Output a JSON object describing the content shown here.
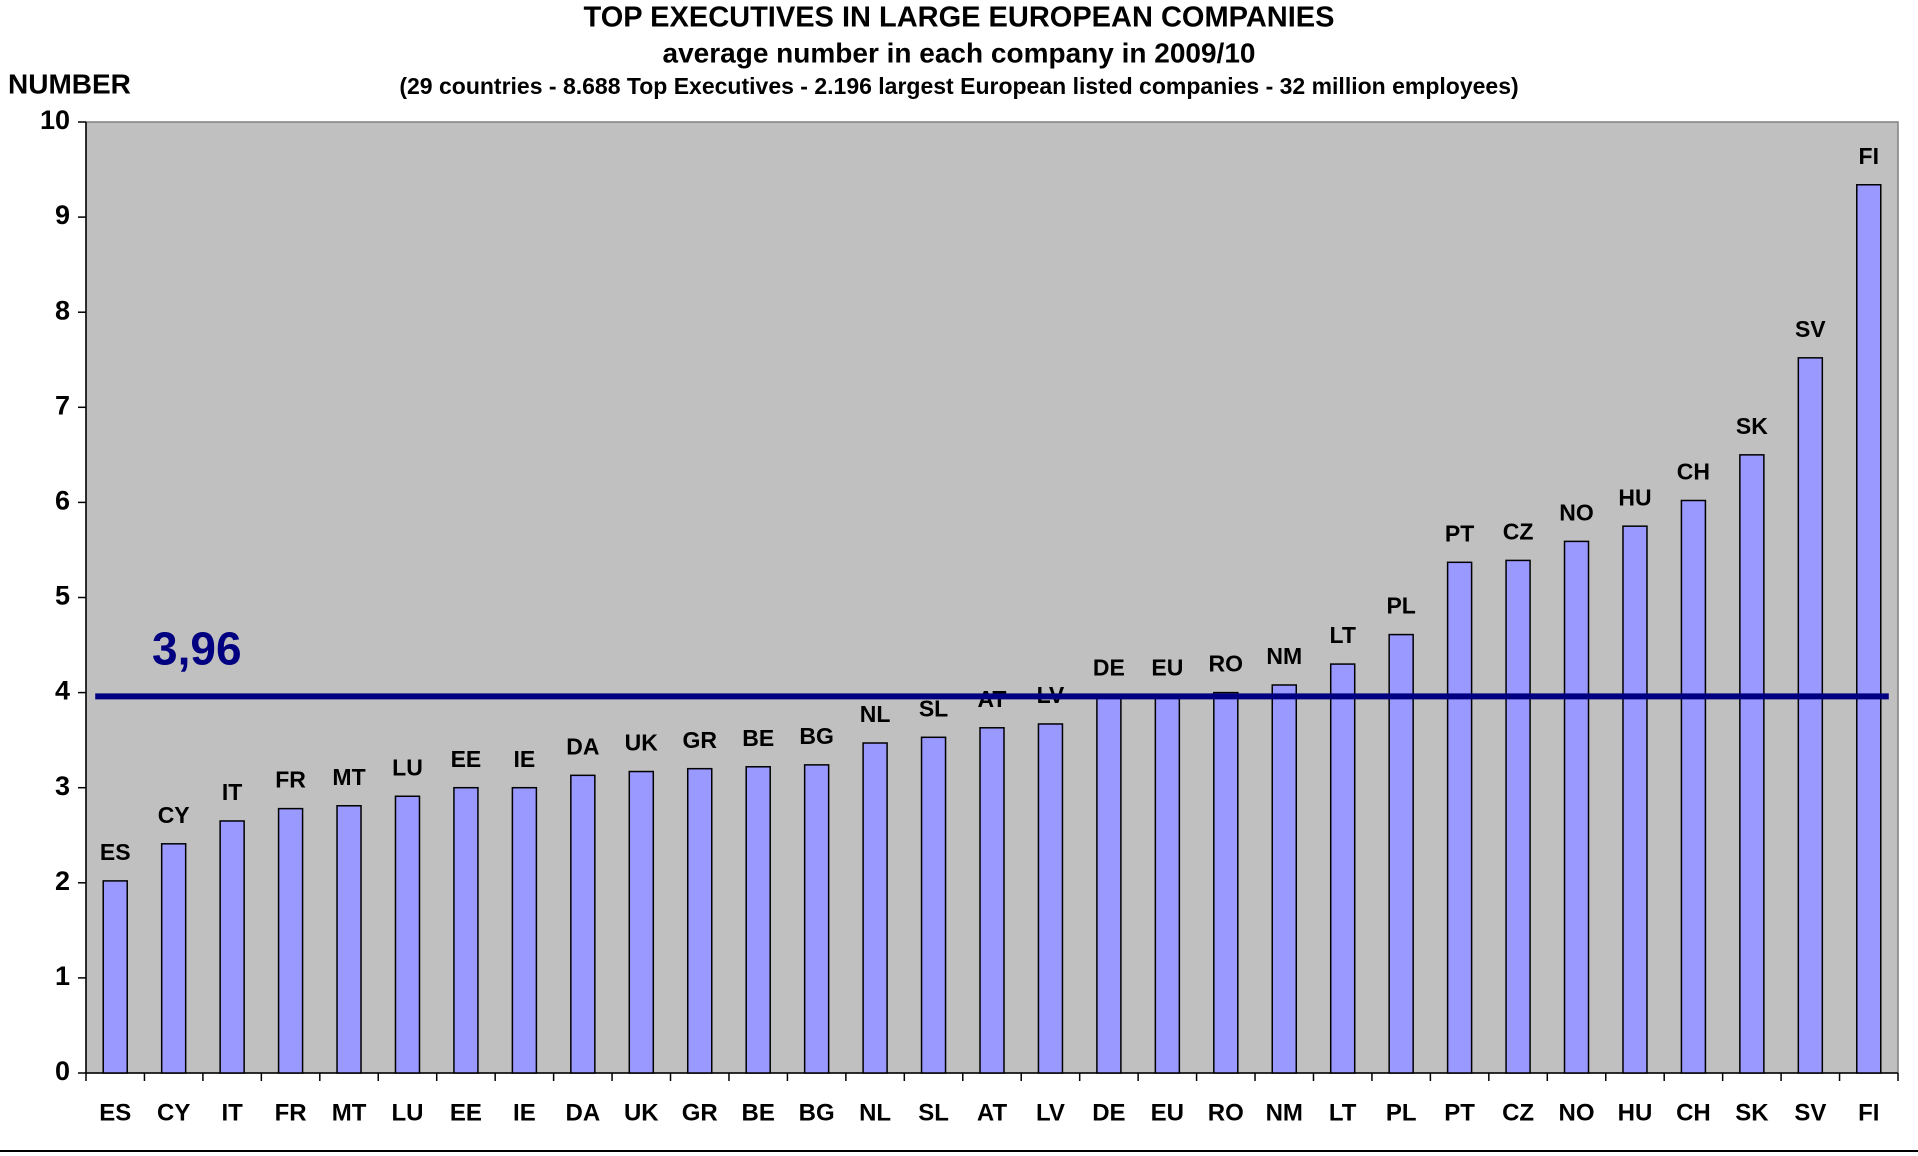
{
  "chart_data": {
    "type": "bar",
    "title": "TOP  EXECUTIVES  IN  LARGE  EUROPEAN  COMPANIES",
    "subtitle": "average number in each company in 2009/10",
    "note": "(29 countries - 8.688 Top Executives - 2.196 largest European listed companies - 32 million employees)",
    "y_label": "NUMBER",
    "categories": [
      "ES",
      "CY",
      "IT",
      "FR",
      "MT",
      "LU",
      "EE",
      "IE",
      "DA",
      "UK",
      "GR",
      "BE",
      "BG",
      "NL",
      "SL",
      "AT",
      "LV",
      "DE",
      "EU",
      "RO",
      "NM",
      "LT",
      "PL",
      "PT",
      "CZ",
      "NO",
      "HU",
      "CH",
      "SK",
      "SV",
      "FI"
    ],
    "values": [
      2.02,
      2.41,
      2.65,
      2.78,
      2.81,
      2.91,
      3.0,
      3.0,
      3.13,
      3.17,
      3.2,
      3.22,
      3.24,
      3.47,
      3.53,
      3.63,
      3.67,
      3.96,
      3.96,
      4.0,
      4.08,
      4.3,
      4.61,
      5.37,
      5.39,
      5.59,
      5.75,
      6.02,
      6.5,
      7.52,
      9.34
    ],
    "color": "#9999ff",
    "reference_line": {
      "value": 3.96,
      "label": "3,96",
      "color": "#000080"
    },
    "ylim": [
      0,
      10
    ],
    "yticks": [
      0,
      1,
      2,
      3,
      4,
      5,
      6,
      7,
      8,
      9,
      10
    ],
    "plot_background": "#c0c0c0"
  }
}
